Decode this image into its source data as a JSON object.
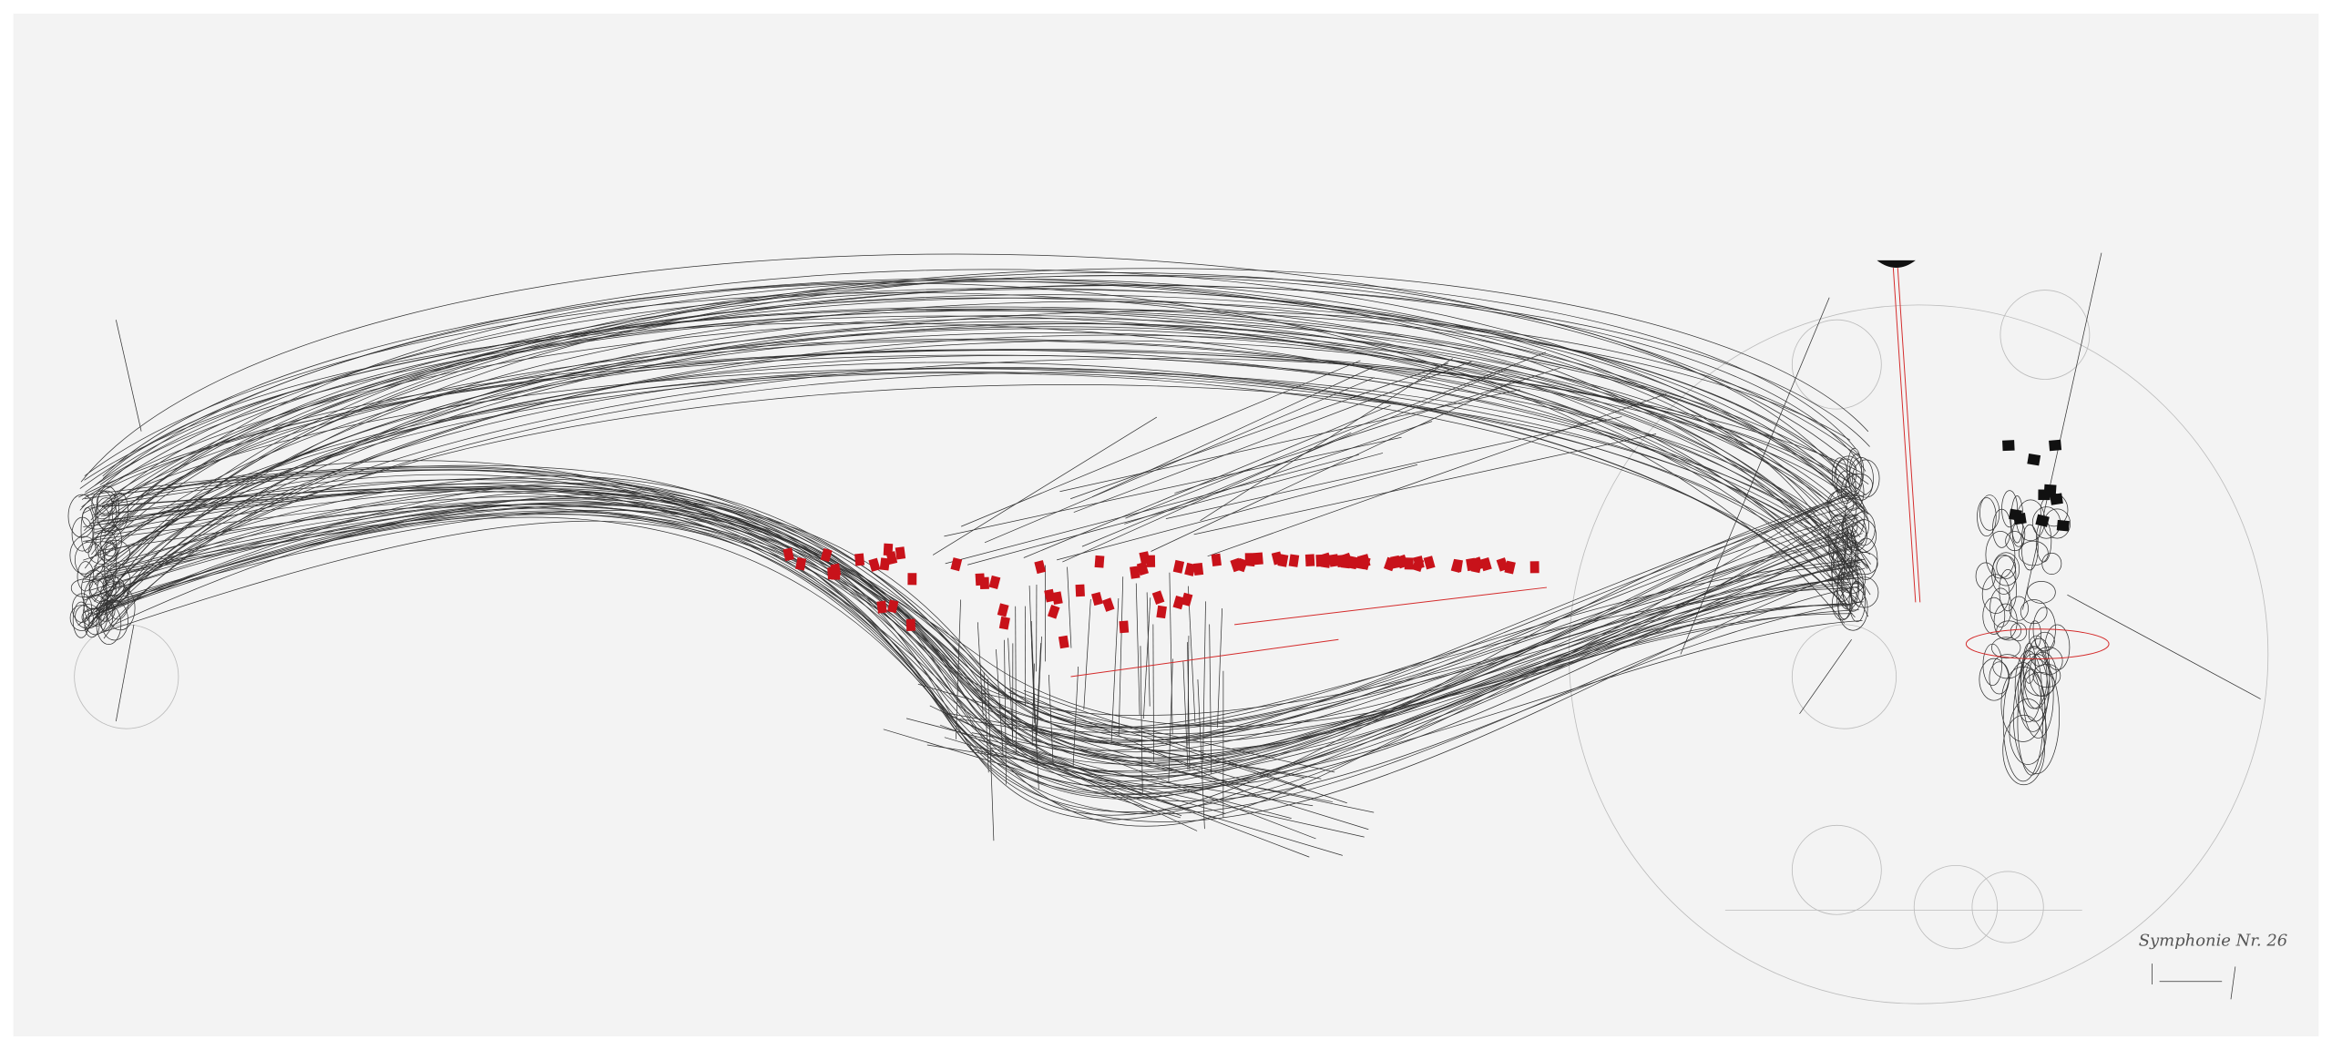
{
  "artwork": {
    "inscription": "Symphonie Nr. 26"
  }
}
